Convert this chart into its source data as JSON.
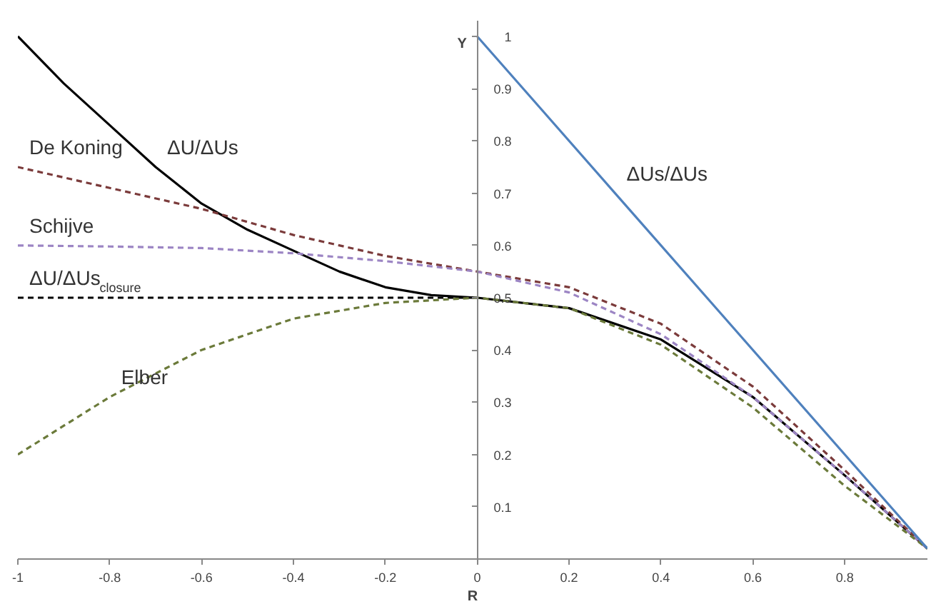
{
  "chart_data": {
    "type": "line",
    "xlabel": "R",
    "ylabel": "Y",
    "xlim": [
      -1,
      0.98
    ],
    "ylim": [
      0,
      1.03
    ],
    "xticks": [
      -1,
      -0.8,
      -0.6,
      -0.4,
      -0.2,
      0,
      0.2,
      0.4,
      0.6,
      0.8
    ],
    "yticks": [
      0.1,
      0.2,
      0.3,
      0.4,
      0.5,
      0.6,
      0.7,
      0.8,
      0.9,
      1
    ],
    "grid": false,
    "line_style": "dashed",
    "series": [
      {
        "color": "#000000",
        "line_style": "solid",
        "x": [
          -1,
          -0.9,
          -0.8,
          -0.7,
          -0.6,
          -0.5,
          -0.4,
          -0.3,
          -0.2,
          -0.1,
          0,
          0.2,
          0.4,
          0.6,
          0.8,
          0.98
        ],
        "values": [
          1.0,
          0.91,
          0.83,
          0.75,
          0.68,
          0.63,
          0.59,
          0.55,
          0.52,
          0.505,
          0.5,
          0.48,
          0.42,
          0.31,
          0.16,
          0.02
        ]
      },
      {
        "color": "#7b3b3b",
        "x": [
          -1,
          -0.8,
          -0.6,
          -0.4,
          -0.2,
          0,
          0.2,
          0.4,
          0.6,
          0.8,
          0.98
        ],
        "values": [
          0.75,
          0.71,
          0.67,
          0.62,
          0.58,
          0.55,
          0.52,
          0.45,
          0.33,
          0.17,
          0.02
        ]
      },
      {
        "color": "#9c85c4",
        "x": [
          -1,
          -0.8,
          -0.6,
          -0.4,
          -0.2,
          0,
          0.2,
          0.4,
          0.6,
          0.8,
          0.98
        ],
        "values": [
          0.6,
          0.598,
          0.595,
          0.585,
          0.57,
          0.55,
          0.51,
          0.43,
          0.31,
          0.16,
          0.02
        ]
      },
      {
        "color": "#000000",
        "x": [
          -1,
          0
        ],
        "values": [
          0.5,
          0.5
        ]
      },
      {
        "color": "#6b7a3a",
        "x": [
          -1,
          -0.8,
          -0.6,
          -0.4,
          -0.2,
          0,
          0.2,
          0.4,
          0.6,
          0.8,
          0.98
        ],
        "values": [
          0.2,
          0.31,
          0.4,
          0.46,
          0.49,
          0.5,
          0.48,
          0.41,
          0.29,
          0.14,
          0.02
        ]
      },
      {
        "color": "#4f81bd",
        "line_style": "solid",
        "x": [
          0,
          0.3,
          0.98
        ],
        "values": [
          1.0,
          0.7,
          0.02
        ]
      }
    ],
    "annotations": [
      {
        "text": "ΔU/ΔUs",
        "x": -0.7,
        "y": 0.75
      },
      {
        "text": "De Koning",
        "x": -1,
        "y": 0.75
      },
      {
        "text": "Schijve",
        "x": -1,
        "y": 0.6
      },
      {
        "text": "ΔU/ΔUs$_{closure}$",
        "x": -1,
        "y": 0.5
      },
      {
        "text": "Elber",
        "x": -0.8,
        "y": 0.31
      },
      {
        "text": "ΔUs/ΔUs",
        "x": 0.3,
        "y": 0.7
      }
    ]
  }
}
